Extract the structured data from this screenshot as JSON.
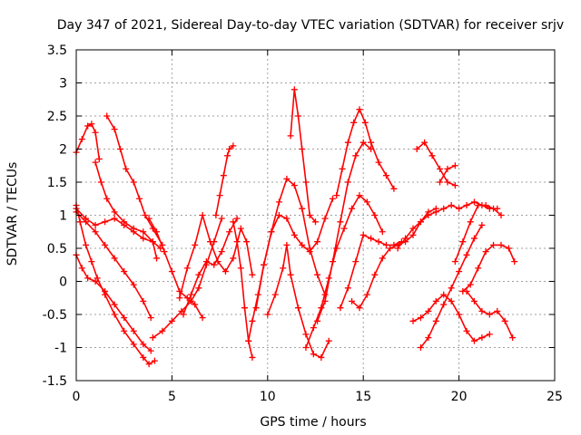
{
  "chart_data": {
    "type": "scatter",
    "title": "Day 347 of 2021, Sidereal Day-to-day VTEC variation (SDTVAR) for receiver srjv",
    "xlabel": "GPS time / hours",
    "ylabel": "SDTVAR / TECUs",
    "xlim": [
      0,
      25
    ],
    "ylim": [
      -1.5,
      3.5
    ],
    "xticks": [
      "0",
      "5",
      "10",
      "15",
      "20",
      "25"
    ],
    "yticks": [
      "-1.5",
      "-1",
      "-0.5",
      "0",
      "0.5",
      "1",
      "1.5",
      "2",
      "2.5",
      "3",
      "3.5"
    ],
    "grid": true,
    "marker": "+",
    "color": "#ff0000",
    "series": [
      {
        "x": [
          0,
          0.3,
          0.6,
          0.8,
          1.0,
          1.2
        ],
        "y": [
          1.95,
          2.15,
          2.35,
          2.38,
          2.25,
          1.85
        ]
      },
      {
        "x": [
          0,
          0.2,
          0.5,
          0.8,
          1.1,
          1.5,
          2.0,
          2.5,
          3.0,
          3.5,
          3.8,
          4.1
        ],
        "y": [
          1.15,
          0.9,
          0.55,
          0.3,
          0.05,
          -0.2,
          -0.5,
          -0.75,
          -0.95,
          -1.15,
          -1.25,
          -1.2
        ]
      },
      {
        "x": [
          0,
          0.3,
          0.6,
          1.0,
          1.5,
          2.0,
          2.5,
          3.0,
          3.5,
          3.9
        ],
        "y": [
          0.4,
          0.2,
          0.05,
          0.0,
          -0.15,
          -0.35,
          -0.55,
          -0.75,
          -0.95,
          -1.05
        ]
      },
      {
        "x": [
          0,
          0.5,
          1.0,
          1.5,
          2.0,
          2.5,
          3.0,
          3.5,
          3.9
        ],
        "y": [
          1.05,
          0.9,
          0.75,
          0.55,
          0.35,
          0.15,
          -0.05,
          -0.3,
          -0.55
        ]
      },
      {
        "x": [
          1.6,
          2.0,
          2.3,
          2.6,
          3.0,
          3.3,
          3.6,
          4.0,
          4.5
        ],
        "y": [
          2.5,
          2.3,
          2.0,
          1.7,
          1.5,
          1.25,
          1.0,
          0.8,
          0.55
        ]
      },
      {
        "x": [
          1.0,
          1.3,
          1.6,
          2.0,
          2.5,
          3.0,
          3.5,
          4.0,
          4.4
        ],
        "y": [
          1.8,
          1.5,
          1.25,
          1.05,
          0.9,
          0.8,
          0.75,
          0.6,
          0.5
        ]
      },
      {
        "x": [
          0,
          0.5,
          1.0,
          1.5,
          2.0,
          2.5,
          3.0,
          3.5,
          4.0,
          4.2
        ],
        "y": [
          1.1,
          0.95,
          0.85,
          0.9,
          0.95,
          0.85,
          0.75,
          0.65,
          0.6,
          0.35
        ]
      },
      {
        "x": [
          3.8,
          4.2,
          4.6,
          5.0,
          5.4,
          5.8,
          6.2,
          6.6
        ],
        "y": [
          0.95,
          0.75,
          0.45,
          0.15,
          -0.15,
          -0.25,
          -0.35,
          -0.55
        ]
      },
      {
        "x": [
          4.0,
          4.5,
          5.0,
          5.5,
          6.0,
          6.4,
          6.8,
          7.2,
          7.6
        ],
        "y": [
          -0.85,
          -0.75,
          -0.6,
          -0.45,
          -0.3,
          -0.1,
          0.25,
          0.6,
          0.95
        ]
      },
      {
        "x": [
          5.6,
          6.0,
          6.4,
          6.8,
          7.2,
          7.6,
          8.0,
          8.4
        ],
        "y": [
          -0.5,
          -0.2,
          0.1,
          0.3,
          0.25,
          0.45,
          0.75,
          0.95
        ]
      },
      {
        "x": [
          5.4,
          5.8,
          6.2,
          6.6,
          7.0,
          7.4,
          7.8,
          8.2,
          8.6,
          8.9,
          9.2
        ],
        "y": [
          -0.25,
          0.2,
          0.55,
          1.0,
          0.6,
          0.3,
          0.15,
          0.35,
          0.8,
          0.6,
          0.1
        ]
      },
      {
        "x": [
          7.3,
          7.5,
          7.7,
          7.9,
          8.0,
          8.2
        ],
        "y": [
          1.0,
          1.3,
          1.6,
          1.9,
          2.0,
          2.05
        ]
      },
      {
        "x": [
          8.2,
          8.4,
          8.6,
          8.8,
          9.0,
          9.2
        ],
        "y": [
          0.9,
          0.6,
          0.2,
          -0.4,
          -0.9,
          -1.15
        ]
      },
      {
        "x": [
          9.0,
          9.2,
          9.5,
          9.8,
          10.2,
          10.6,
          11.0,
          11.4,
          11.8,
          12.2,
          12.6,
          13.0,
          13.4
        ],
        "y": [
          -0.9,
          -0.6,
          -0.2,
          0.25,
          0.75,
          1.0,
          0.95,
          0.7,
          0.55,
          0.45,
          0.6,
          0.95,
          1.25
        ]
      },
      {
        "x": [
          9.4,
          9.8,
          10.2,
          10.6,
          11.0,
          11.4,
          11.8,
          12.2,
          12.6,
          13.0
        ],
        "y": [
          -0.4,
          0.25,
          0.75,
          1.2,
          1.55,
          1.45,
          1.1,
          0.5,
          0.1,
          -0.2
        ]
      },
      {
        "x": [
          10.0,
          10.4,
          10.8,
          11.0,
          11.2,
          11.6,
          12.0,
          12.4,
          12.8,
          13.2
        ],
        "y": [
          -0.5,
          -0.2,
          0.2,
          0.55,
          0.1,
          -0.4,
          -0.8,
          -1.1,
          -1.15,
          -0.9
        ]
      },
      {
        "x": [
          11.2,
          11.4,
          11.6,
          11.8,
          12.0,
          12.2,
          12.5
        ],
        "y": [
          2.2,
          2.9,
          2.5,
          2.0,
          1.5,
          1.0,
          0.9
        ]
      },
      {
        "x": [
          12.0,
          12.4,
          12.8,
          13.2,
          13.6,
          14.0,
          14.4,
          14.8,
          15.2,
          15.6,
          16.0
        ],
        "y": [
          -1.0,
          -0.7,
          -0.4,
          0.05,
          0.5,
          0.8,
          1.1,
          1.3,
          1.2,
          1.0,
          0.75
        ]
      },
      {
        "x": [
          12.6,
          13.0,
          13.4,
          13.8,
          14.2,
          14.6,
          15.0,
          15.4
        ],
        "y": [
          -0.6,
          -0.3,
          0.3,
          0.9,
          1.5,
          1.9,
          2.1,
          2.0
        ]
      },
      {
        "x": [
          13.6,
          13.9,
          14.2,
          14.5,
          14.8,
          15.1,
          15.4,
          15.8,
          16.2,
          16.6
        ],
        "y": [
          1.3,
          1.7,
          2.1,
          2.4,
          2.6,
          2.4,
          2.1,
          1.8,
          1.6,
          1.4
        ]
      },
      {
        "x": [
          13.8,
          14.2,
          14.6,
          15.0,
          15.4,
          15.8,
          16.2,
          16.6,
          17.0
        ],
        "y": [
          -0.4,
          -0.1,
          0.3,
          0.7,
          0.65,
          0.6,
          0.55,
          0.55,
          0.6
        ]
      },
      {
        "x": [
          14.4,
          14.8,
          15.2,
          15.6,
          16.0,
          16.4,
          16.8,
          17.2,
          17.6,
          18.0,
          18.4,
          18.8
        ],
        "y": [
          -0.3,
          -0.4,
          -0.2,
          0.1,
          0.35,
          0.5,
          0.55,
          0.6,
          0.7,
          0.9,
          1.05,
          1.1
        ]
      },
      {
        "x": [
          16.8,
          17.2,
          17.6,
          18.0,
          18.4,
          18.8,
          19.2,
          19.6,
          20.0,
          20.4,
          20.8,
          21.2,
          21.6,
          22.0
        ],
        "y": [
          0.5,
          0.65,
          0.8,
          0.9,
          1.0,
          1.05,
          1.1,
          1.15,
          1.1,
          1.15,
          1.2,
          1.15,
          1.1,
          1.1
        ]
      },
      {
        "x": [
          17.8,
          18.2,
          18.6,
          19.0,
          19.4,
          19.8
        ],
        "y": [
          2.0,
          2.1,
          1.9,
          1.7,
          1.5,
          1.45
        ]
      },
      {
        "x": [
          19.0,
          19.4,
          19.8
        ],
        "y": [
          1.5,
          1.7,
          1.75
        ]
      },
      {
        "x": [
          18.0,
          18.4,
          18.8,
          19.2,
          19.6,
          20.0,
          20.4,
          20.8,
          21.2
        ],
        "y": [
          -1.0,
          -0.85,
          -0.6,
          -0.35,
          -0.1,
          0.15,
          0.4,
          0.65,
          0.85
        ]
      },
      {
        "x": [
          17.6,
          18.0,
          18.4,
          18.8,
          19.2,
          19.6,
          20.0,
          20.4,
          20.8,
          21.2,
          21.6
        ],
        "y": [
          -0.6,
          -0.55,
          -0.45,
          -0.3,
          -0.2,
          -0.3,
          -0.5,
          -0.75,
          -0.9,
          -0.85,
          -0.8
        ]
      },
      {
        "x": [
          19.8,
          20.2,
          20.6,
          21.0,
          21.4,
          21.8,
          22.2
        ],
        "y": [
          0.3,
          0.6,
          0.9,
          1.15,
          1.15,
          1.1,
          1.0
        ]
      },
      {
        "x": [
          20.2,
          20.6,
          21.0,
          21.4,
          21.8,
          22.2,
          22.6,
          22.9
        ],
        "y": [
          -0.15,
          -0.05,
          0.2,
          0.45,
          0.55,
          0.55,
          0.5,
          0.3
        ]
      },
      {
        "x": [
          20.4,
          20.8,
          21.2,
          21.6,
          22.0,
          22.4,
          22.8
        ],
        "y": [
          -0.15,
          -0.3,
          -0.45,
          -0.5,
          -0.45,
          -0.6,
          -0.85
        ]
      }
    ]
  }
}
